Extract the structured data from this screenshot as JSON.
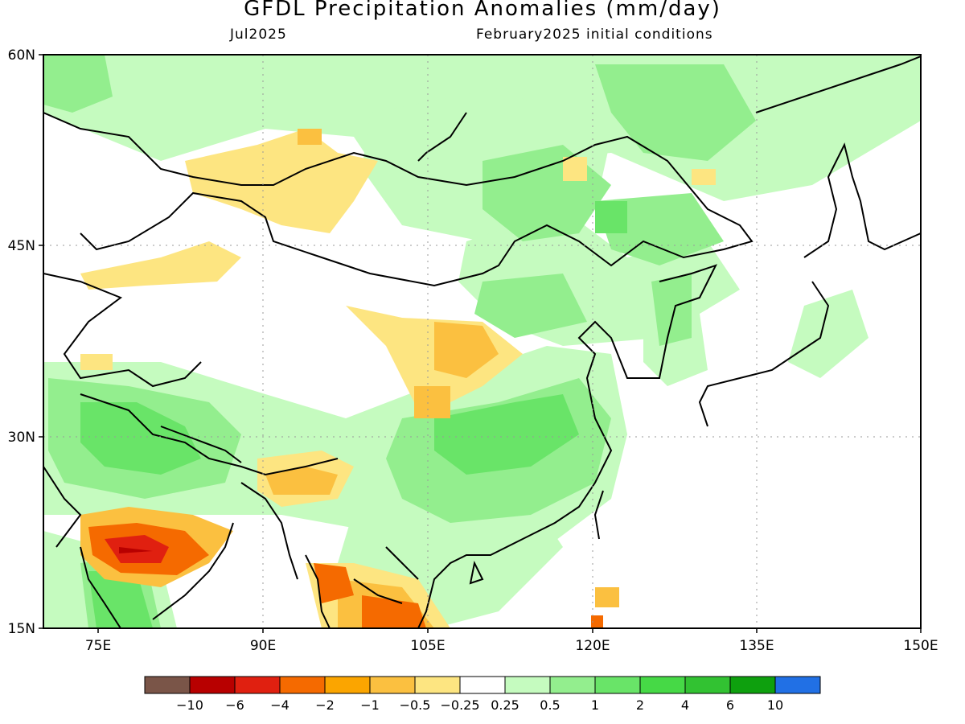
{
  "title": "GFDL Precipitation Anomalies (mm/day)",
  "valid_month": "Jul2025",
  "initial_conditions": "February2025 initial conditions",
  "map": {
    "lon_labels": [
      "75E",
      "90E",
      "105E",
      "120E",
      "135E",
      "150E"
    ],
    "lat_labels": [
      "60N",
      "45N",
      "30N",
      "15N"
    ],
    "lon_values": [
      75,
      90,
      105,
      120,
      135,
      150
    ],
    "lat_values": [
      60,
      45,
      30,
      15
    ],
    "lon_range": [
      70,
      150
    ],
    "lat_range": [
      15,
      60
    ]
  },
  "legend": {
    "labels": [
      "-10",
      "-6",
      "-4",
      "-2",
      "-1",
      "-0.5",
      "-0.25",
      "0.25",
      "0.5",
      "1",
      "2",
      "4",
      "6",
      "10"
    ],
    "colors": [
      "#7a5548",
      "#b80000",
      "#e02010",
      "#f56a00",
      "#fba500",
      "#fbc040",
      "#fde581",
      "#ffffff",
      "#c5fbbf",
      "#93ee8e",
      "#69e468",
      "#46d946",
      "#32c232",
      "#0ea00e",
      "#2170e5"
    ]
  }
}
